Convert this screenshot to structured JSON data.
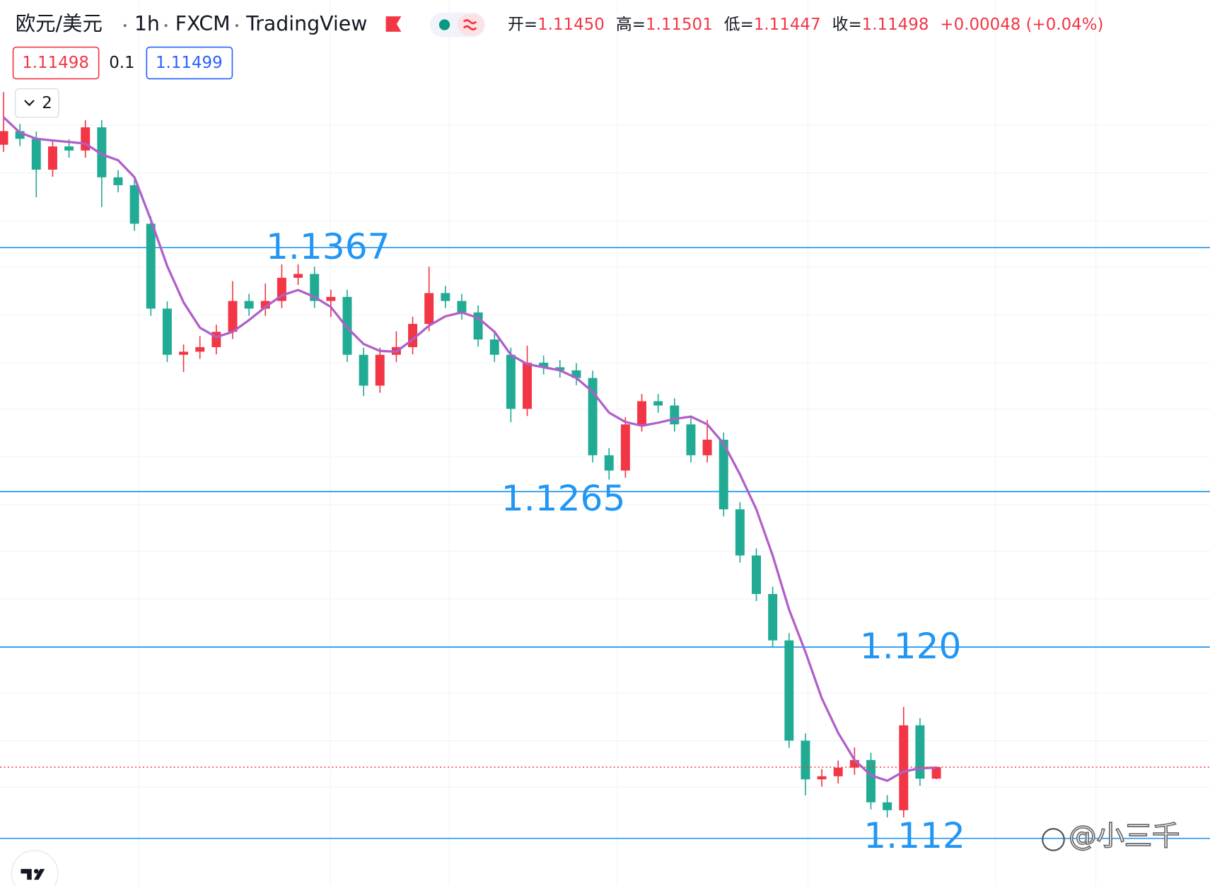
{
  "header": {
    "symbol": "欧元/美元",
    "interval": "1h",
    "exchange": "FXCM",
    "platform": "TradingView",
    "ohlc": [
      {
        "label": "开=",
        "value": "1.11450"
      },
      {
        "label": "高=",
        "value": "1.11501"
      },
      {
        "label": "低=",
        "value": "1.11447"
      },
      {
        "label": "收=",
        "value": "1.11498"
      }
    ],
    "change": "+0.00048 (+0.04%)",
    "bid": "1.11498",
    "spread": "0.1",
    "ask": "1.11499",
    "indicators": "2"
  },
  "watermark": "@小三千",
  "chart_data": {
    "type": "candlestick",
    "up_color": "#f23645",
    "down_color": "#22ab94",
    "ylim": [
      1.11,
      1.1435
    ],
    "open": [
      1.141,
      1.14157,
      1.14125,
      1.13996,
      1.14093,
      1.14076,
      1.14173,
      1.13964,
      1.13931,
      1.1377,
      1.13415,
      1.13222,
      1.13235,
      1.13254,
      1.13318,
      1.13447,
      1.13415,
      1.13447,
      1.13544,
      1.1356,
      1.13447,
      1.13464,
      1.13222,
      1.13093,
      1.13222,
      1.13254,
      1.13351,
      1.1348,
      1.13447,
      1.13399,
      1.13286,
      1.13222,
      1.12996,
      1.13189,
      1.1317,
      1.13157,
      1.13125,
      1.12802,
      1.12738,
      1.12931,
      1.13028,
      1.1301,
      1.12931,
      1.12802,
      1.12867,
      1.12576,
      1.12383,
      1.12222,
      1.12028,
      1.11609,
      1.11447,
      1.1146,
      1.11496,
      1.11528,
      1.11351,
      1.11318,
      1.11673,
      1.1145
    ],
    "high": [
      1.1432,
      1.14187,
      1.14155,
      1.14123,
      1.14123,
      1.14203,
      1.14203,
      1.13994,
      1.13961,
      1.138,
      1.13445,
      1.13265,
      1.133,
      1.13348,
      1.1353,
      1.13477,
      1.1352,
      1.136,
      1.136,
      1.1359,
      1.13494,
      1.13494,
      1.13252,
      1.13252,
      1.1332,
      1.13381,
      1.1359,
      1.1351,
      1.13477,
      1.13429,
      1.13316,
      1.13252,
      1.1326,
      1.13219,
      1.132,
      1.13187,
      1.13155,
      1.12832,
      1.12961,
      1.13058,
      1.13058,
      1.1304,
      1.12961,
      1.1295,
      1.12897,
      1.12606,
      1.12413,
      1.12252,
      1.12058,
      1.11639,
      1.1149,
      1.11526,
      1.1158,
      1.11558,
      1.11381,
      1.1175,
      1.11703,
      1.11501
    ],
    "low": [
      1.1407,
      1.14095,
      1.1388,
      1.13966,
      1.14046,
      1.14046,
      1.1384,
      1.13901,
      1.1374,
      1.13385,
      1.13192,
      1.1315,
      1.13205,
      1.13224,
      1.13288,
      1.13385,
      1.13385,
      1.13417,
      1.13514,
      1.13417,
      1.1338,
      1.13192,
      1.1305,
      1.13063,
      1.13192,
      1.13224,
      1.13321,
      1.13417,
      1.13369,
      1.13256,
      1.13192,
      1.1294,
      1.12966,
      1.1314,
      1.13127,
      1.13095,
      1.12772,
      1.127,
      1.12708,
      1.12901,
      1.1298,
      1.12901,
      1.12772,
      1.12772,
      1.12546,
      1.12353,
      1.12192,
      1.11998,
      1.11579,
      1.1138,
      1.11417,
      1.1143,
      1.11466,
      1.11321,
      1.11288,
      1.11288,
      1.1142,
      1.11447
    ],
    "close": [
      1.14157,
      1.14125,
      1.13996,
      1.14093,
      1.14076,
      1.14173,
      1.13964,
      1.13931,
      1.1377,
      1.13415,
      1.13222,
      1.13235,
      1.13254,
      1.13318,
      1.13447,
      1.13415,
      1.13447,
      1.13544,
      1.1356,
      1.13447,
      1.13464,
      1.13222,
      1.13093,
      1.13222,
      1.13254,
      1.13351,
      1.1348,
      1.13447,
      1.13399,
      1.13286,
      1.13222,
      1.12996,
      1.13189,
      1.1317,
      1.13157,
      1.13125,
      1.12802,
      1.12738,
      1.12931,
      1.13028,
      1.1301,
      1.12931,
      1.12802,
      1.12867,
      1.12576,
      1.12383,
      1.12222,
      1.12028,
      1.11609,
      1.11447,
      1.1146,
      1.11496,
      1.11528,
      1.11351,
      1.11318,
      1.11673,
      1.1145,
      1.11498
    ],
    "ma": {
      "color": "#b05fc9",
      "values": [
        1.14215,
        1.14151,
        1.14125,
        1.14118,
        1.14112,
        1.14105,
        1.1406,
        1.14035,
        1.13964,
        1.13786,
        1.13593,
        1.13441,
        1.13335,
        1.13296,
        1.13318,
        1.13367,
        1.13422,
        1.1347,
        1.13493,
        1.13464,
        1.13422,
        1.13335,
        1.13267,
        1.13238,
        1.13235,
        1.13286,
        1.13344,
        1.13383,
        1.13399,
        1.13376,
        1.13318,
        1.13222,
        1.13183,
        1.1317,
        1.13157,
        1.13125,
        1.13067,
        1.1298,
        1.12941,
        1.12925,
        1.12938,
        1.12954,
        1.12964,
        1.12931,
        1.12851,
        1.12722,
        1.12576,
        1.12383,
        1.12157,
        1.1198,
        1.11786,
        1.11641,
        1.11528,
        1.11464,
        1.11441,
        1.1148,
        1.11493,
        1.11496
      ]
    },
    "levels": {
      "color": "#2196f3",
      "lines": [
        {
          "value": 1.1367,
          "label": "1.1367"
        },
        {
          "value": 1.1265,
          "label": "1.1265"
        },
        {
          "value": 1.12,
          "label": "1.120"
        },
        {
          "value": 1.112,
          "label": "1.112"
        }
      ]
    },
    "last_price_color": "#f23645"
  }
}
